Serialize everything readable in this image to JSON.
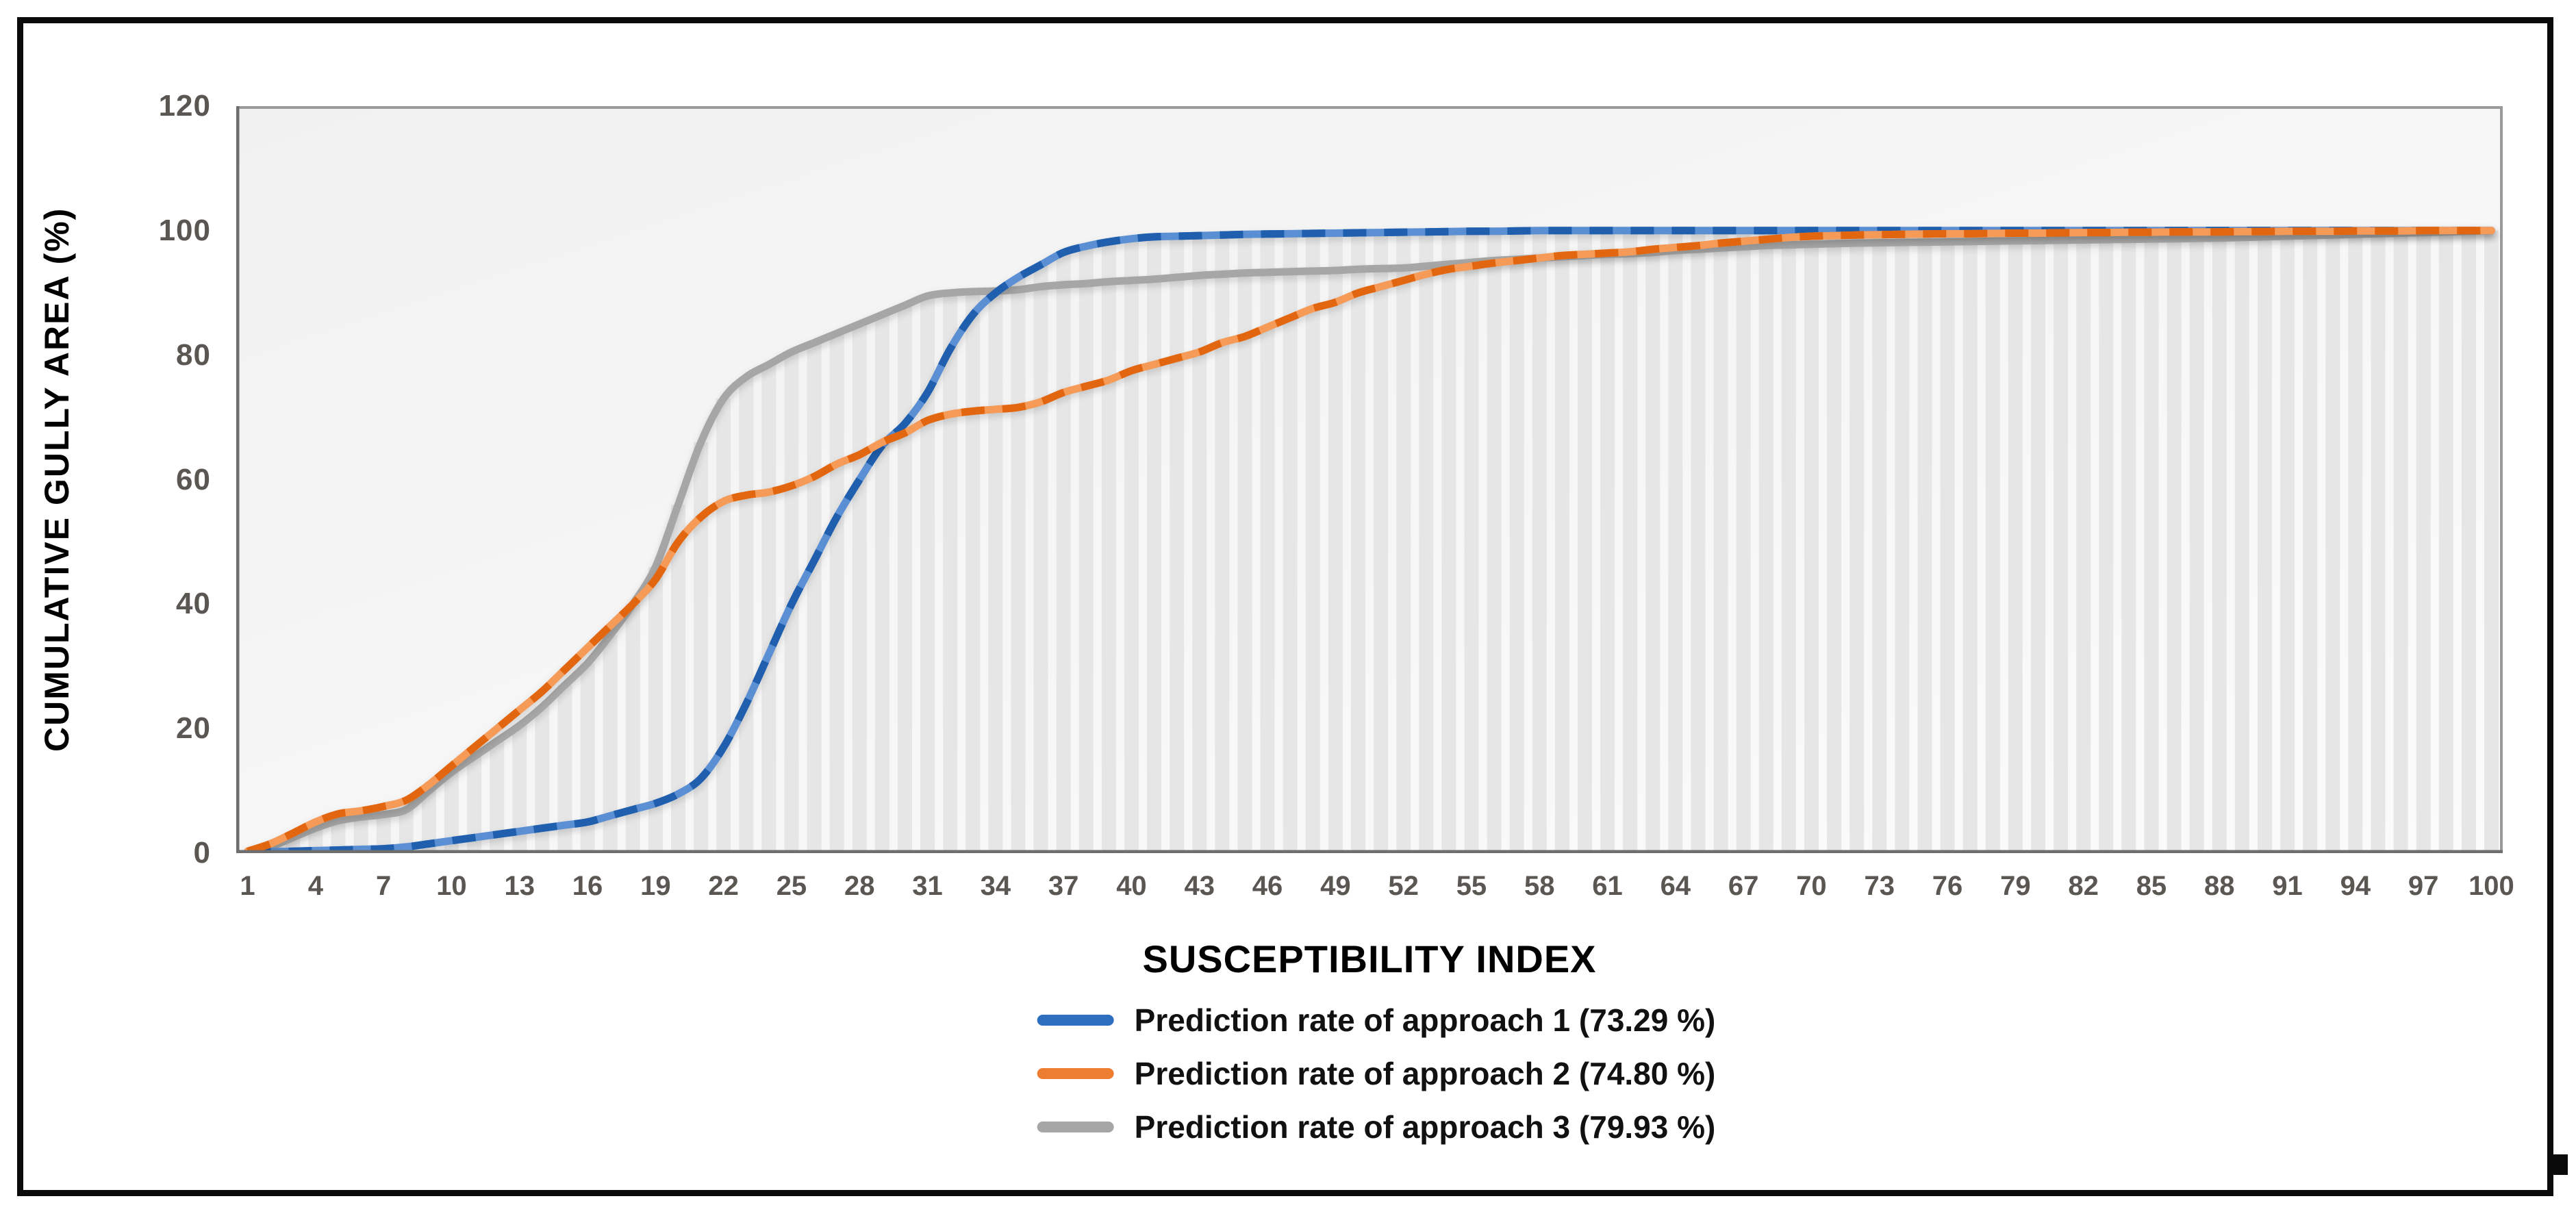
{
  "y_axis": {
    "title": "CUMULATIVE GULLY AREA (%)",
    "ticks": [
      0,
      20,
      40,
      60,
      80,
      100,
      120
    ],
    "max": 120
  },
  "x_axis": {
    "title": "SUSCEPTIBILITY INDEX",
    "tick_labels": [
      "1",
      "4",
      "7",
      "10",
      "13",
      "16",
      "19",
      "22",
      "25",
      "28",
      "31",
      "34",
      "37",
      "40",
      "43",
      "46",
      "49",
      "52",
      "55",
      "58",
      "61",
      "64",
      "67",
      "70",
      "73",
      "76",
      "79",
      "82",
      "85",
      "88",
      "91",
      "94",
      "97",
      "100"
    ]
  },
  "legend": [
    {
      "label": "Prediction rate of approach 1 (73.29 %)",
      "color": "#2E6FC0",
      "dash_color": "#1F5FAE",
      "base_color": "#5B8FD4"
    },
    {
      "label": "Prediction rate of approach 2 (74.80 %)",
      "color": "#ED7D31",
      "dash_color": "#E2660F",
      "base_color": "#F59A57"
    },
    {
      "label": "Prediction rate of approach 3 (79.93 %)",
      "color": "#A6A6A6",
      "dash_color": "#A6A6A6",
      "base_color": "#A6A6A6"
    }
  ],
  "chart_data": {
    "type": "line",
    "title": "",
    "xlabel": "SUSCEPTIBILITY INDEX",
    "ylabel": "CUMULATIVE GULLY AREA (%)",
    "ylim": [
      0,
      120
    ],
    "x_range": [
      1,
      100
    ],
    "grid": false,
    "legend_position": "bottom",
    "background_bars": {
      "style": "striped vertical columns under upper envelope of approach 1 and approach 3",
      "rule": "max(approach1, approach3)",
      "fill": "#E6E6E6"
    },
    "series": [
      {
        "name": "Prediction rate of approach 1 (73.29 %)",
        "color": "#2E6FC0",
        "values": [
          0,
          0.2,
          0.3,
          0.4,
          0.5,
          0.6,
          0.7,
          1,
          1.5,
          2,
          2.5,
          3,
          3.5,
          4,
          4.5,
          5,
          6,
          7,
          8,
          9.5,
          12,
          17,
          24,
          32,
          40,
          47,
          54,
          60,
          65.5,
          69,
          74,
          81,
          86.5,
          90,
          92.5,
          94.5,
          96.5,
          97.5,
          98.2,
          98.7,
          99,
          99.1,
          99.2,
          99.3,
          99.4,
          99.45,
          99.5,
          99.55,
          99.6,
          99.65,
          99.7,
          99.75,
          99.8,
          99.85,
          99.9,
          99.9,
          99.95,
          100,
          100,
          100,
          100,
          100,
          100,
          100,
          100,
          100,
          100,
          100,
          100,
          100,
          100,
          100,
          100,
          100,
          100,
          100,
          100,
          100,
          100,
          100,
          100,
          100,
          100,
          100,
          100,
          100,
          100,
          100,
          100,
          100,
          100,
          100,
          100,
          100,
          100,
          100,
          100,
          100,
          100,
          100
        ]
      },
      {
        "name": "Prediction rate of approach 2 (74.80 %)",
        "color": "#ED7D31",
        "values": [
          0.3,
          1.5,
          3.2,
          5,
          6.3,
          6.8,
          7.5,
          8.5,
          11,
          14,
          17,
          20,
          23,
          26,
          29.5,
          33,
          36.5,
          40,
          44,
          50,
          54,
          56.5,
          57.5,
          58,
          59,
          60.5,
          62.5,
          64,
          66,
          67.5,
          69.5,
          70.5,
          71,
          71.3,
          71.6,
          72.5,
          74,
          75,
          76,
          77.5,
          78.5,
          79.5,
          80.5,
          82,
          83,
          84.5,
          86,
          87.5,
          88.5,
          90,
          91,
          92,
          93,
          93.8,
          94.3,
          94.8,
          95.2,
          95.6,
          96,
          96.2,
          96.4,
          96.6,
          97,
          97.3,
          97.6,
          98,
          98.3,
          98.6,
          98.9,
          99.1,
          99.2,
          99.3,
          99.35,
          99.4,
          99.45,
          99.5,
          99.5,
          99.55,
          99.6,
          99.6,
          99.65,
          99.7,
          99.7,
          99.75,
          99.75,
          99.8,
          99.8,
          99.8,
          99.85,
          99.85,
          99.9,
          99.9,
          99.9,
          99.95,
          99.95,
          99.95,
          100,
          100,
          100,
          100
        ]
      },
      {
        "name": "Prediction rate of approach 3 (79.93 %)",
        "color": "#A6A6A6",
        "values": [
          0,
          1,
          2.5,
          4,
          5.2,
          5.8,
          6.2,
          7,
          10,
          13,
          15.5,
          18,
          20.5,
          23.5,
          27,
          30.5,
          35,
          40,
          46,
          56,
          66,
          73,
          76.5,
          78.5,
          80.5,
          82,
          83.5,
          85,
          86.5,
          88,
          89.5,
          90,
          90.2,
          90.3,
          90.5,
          91,
          91.3,
          91.5,
          91.8,
          92,
          92.2,
          92.5,
          92.8,
          93,
          93.2,
          93.3,
          93.4,
          93.5,
          93.6,
          93.8,
          93.9,
          94,
          94.3,
          94.6,
          94.9,
          95.2,
          95.4,
          95.6,
          95.8,
          96,
          96.2,
          96.3,
          96.5,
          96.8,
          97,
          97.2,
          97.4,
          97.6,
          97.7,
          97.8,
          97.9,
          98,
          98.05,
          98.1,
          98.15,
          98.2,
          98.25,
          98.3,
          98.35,
          98.4,
          98.45,
          98.5,
          98.55,
          98.6,
          98.65,
          98.7,
          98.75,
          98.8,
          98.9,
          99,
          99.1,
          99.2,
          99.3,
          99.4,
          99.5,
          99.6,
          99.7,
          99.8,
          99.9,
          100
        ]
      }
    ]
  },
  "style": {
    "plot_bg": "#F6F6F6",
    "axis_line_color": "#6E6E6E",
    "plot_border_color": "#9A9A9A",
    "tick_text_color": "#5A5652",
    "frame_color": "#0A0A0A"
  }
}
